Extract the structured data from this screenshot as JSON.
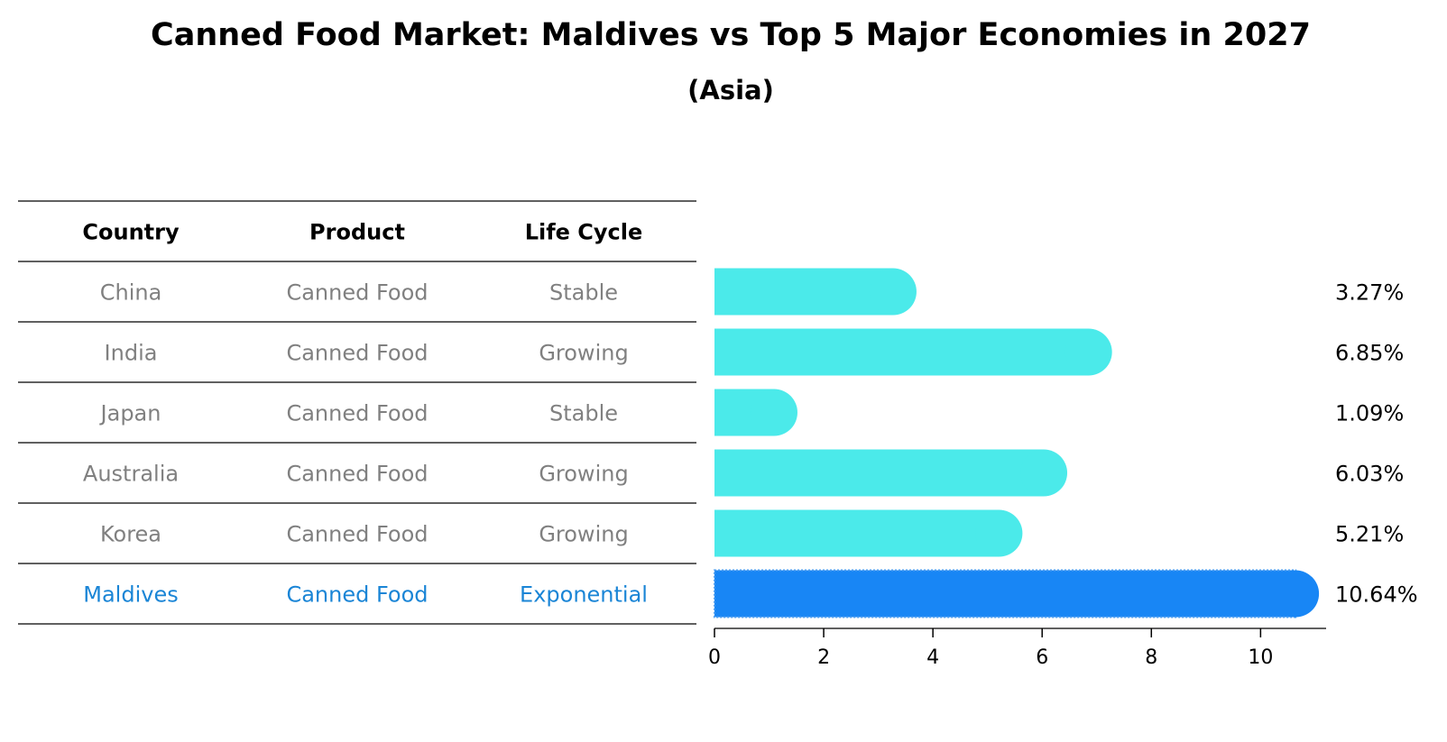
{
  "chart_data": {
    "type": "bar",
    "orientation": "horizontal",
    "title": "Canned Food Market: Maldives vs Top 5 Major Economies in 2027",
    "subtitle": "(Asia)",
    "table": {
      "columns": [
        "Country",
        "Product",
        "Life Cycle"
      ],
      "rows": [
        [
          "China",
          "Canned Food",
          "Stable"
        ],
        [
          "India",
          "Canned Food",
          "Growing"
        ],
        [
          "Japan",
          "Canned Food",
          "Stable"
        ],
        [
          "Australia",
          "Canned Food",
          "Growing"
        ],
        [
          "Korea",
          "Canned Food",
          "Growing"
        ],
        [
          "Maldives",
          "Canned Food",
          "Exponential"
        ]
      ]
    },
    "categories": [
      "China",
      "India",
      "Japan",
      "Australia",
      "Korea",
      "Maldives"
    ],
    "values": [
      3.27,
      6.85,
      1.09,
      6.03,
      5.21,
      10.64
    ],
    "data_labels": [
      "3.27%",
      "6.85%",
      "1.09%",
      "6.03%",
      "5.21%",
      "10.64%"
    ],
    "highlight_index": 5,
    "x_ticks": [
      "0",
      "2",
      "4",
      "6",
      "8",
      "10"
    ],
    "xlim": [
      0,
      11.2
    ],
    "grid": false,
    "colors": {
      "bar": "#4beaea",
      "highlight_bar": "#1886f5",
      "table_text": "#808080",
      "highlight_text": "#1a85d6"
    }
  }
}
